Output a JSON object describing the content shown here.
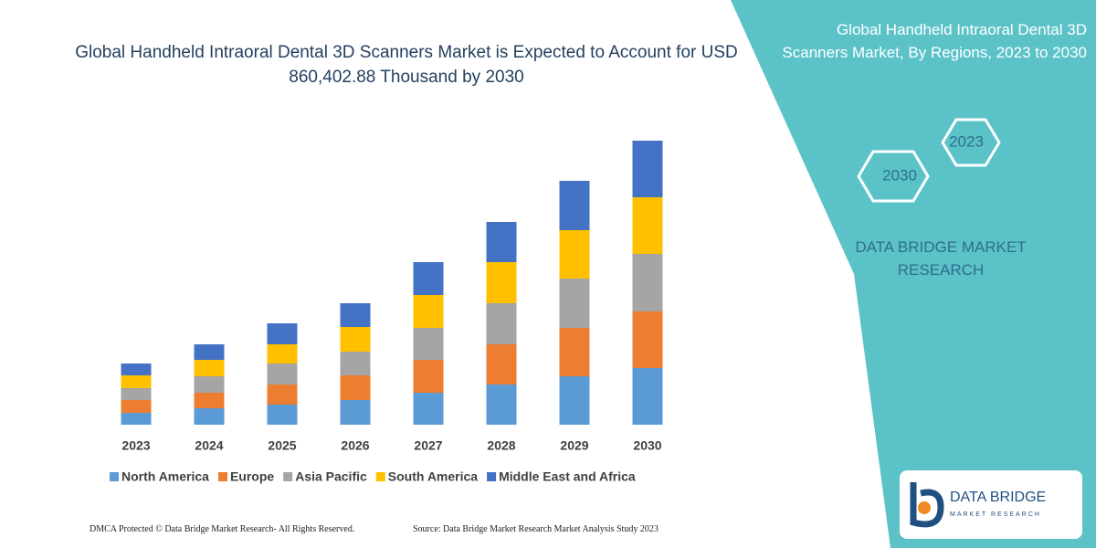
{
  "chart_data": {
    "type": "stacked-bar",
    "title": "Global Handheld Intraoral Dental 3D Scanners Market is Expected to Account for USD 860,402.88 Thousand by 2030",
    "categories": [
      "2023",
      "2024",
      "2025",
      "2026",
      "2027",
      "2028",
      "2029",
      "2030"
    ],
    "series": [
      {
        "name": "North America",
        "color": "#5b9bd5",
        "values": [
          13,
          18,
          22,
          27,
          35,
          44,
          53,
          62
        ]
      },
      {
        "name": "Europe",
        "color": "#ed7d31",
        "values": [
          14,
          17,
          22,
          27,
          36,
          44,
          53,
          62
        ]
      },
      {
        "name": "Asia Pacific",
        "color": "#a5a5a5",
        "values": [
          13,
          18,
          23,
          26,
          35,
          45,
          54,
          63
        ]
      },
      {
        "name": "South America",
        "color": "#ffc000",
        "values": [
          14,
          18,
          21,
          27,
          36,
          45,
          53,
          62
        ]
      },
      {
        "name": "Middle East and Africa",
        "color": "#4472c4",
        "values": [
          13,
          17,
          23,
          26,
          36,
          44,
          54,
          62
        ]
      }
    ],
    "ylim": [
      0,
      320
    ]
  },
  "side_panel": {
    "title": "Global Handheld Intraoral Dental 3D Scanners Market, By Regions, 2023 to 2030",
    "hex_labels": [
      "2023",
      "2030"
    ],
    "brand": "DATA BRIDGE MARKET RESEARCH"
  },
  "logo": {
    "name": "DATA BRIDGE",
    "tagline": "MARKET RESEARCH"
  },
  "footer": {
    "left": "DMCA Protected © Data Bridge Market Research- All Rights Reserved.",
    "right": "Source: Data Bridge Market Research Market Analysis Study 2023"
  }
}
